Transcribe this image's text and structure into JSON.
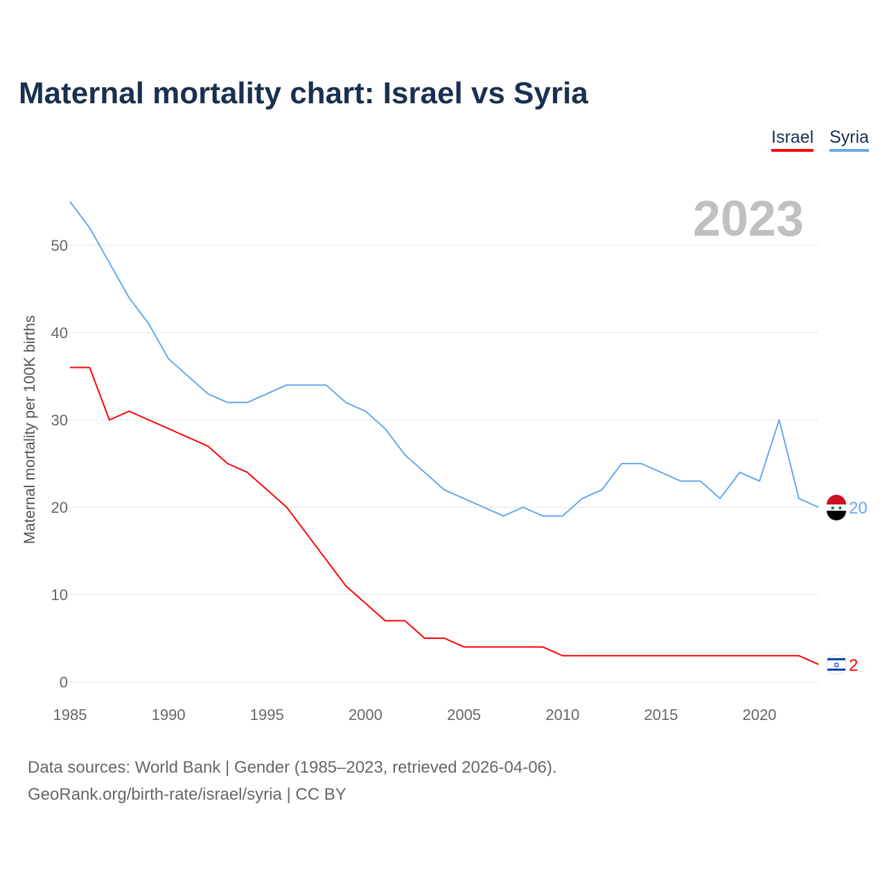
{
  "title": "Maternal mortality chart: Israel vs Syria",
  "year_label": "2023",
  "source_line1": "Data sources: World Bank | Gender (1985–2023, retrieved 2026-04-06).",
  "source_line2": "GeoRank.org/birth-rate/israel/syria | CC BY",
  "chart_data": {
    "type": "line",
    "title": "Maternal mortality chart: Israel vs Syria",
    "xlabel": "",
    "ylabel": "Maternal mortality per 100K births",
    "xlim": [
      1985,
      2023
    ],
    "ylim": [
      0,
      55
    ],
    "xticks": [
      1985,
      1990,
      1995,
      2000,
      2005,
      2010,
      2015,
      2020
    ],
    "yticks": [
      0,
      10,
      20,
      30,
      40,
      50
    ],
    "grid": true,
    "legend": "top-right",
    "x": [
      1985,
      1986,
      1987,
      1988,
      1989,
      1990,
      1991,
      1992,
      1993,
      1994,
      1995,
      1996,
      1997,
      1998,
      1999,
      2000,
      2001,
      2002,
      2003,
      2004,
      2005,
      2006,
      2007,
      2008,
      2009,
      2010,
      2011,
      2012,
      2013,
      2014,
      2015,
      2016,
      2017,
      2018,
      2019,
      2020,
      2021,
      2022,
      2023
    ],
    "series": [
      {
        "name": "Israel",
        "color": "#ff0000",
        "end_label": "2",
        "values": [
          36,
          36,
          30,
          31,
          30,
          29,
          28,
          27,
          25,
          24,
          22,
          20,
          17,
          14,
          11,
          9,
          7,
          7,
          5,
          5,
          4,
          4,
          4,
          4,
          4,
          3,
          3,
          3,
          3,
          3,
          3,
          3,
          3,
          3,
          3,
          3,
          3,
          3,
          2
        ]
      },
      {
        "name": "Syria",
        "color": "#64a8ec",
        "end_label": "20",
        "values": [
          55,
          52,
          48,
          44,
          41,
          37,
          35,
          33,
          32,
          32,
          33,
          34,
          34,
          34,
          32,
          31,
          29,
          26,
          24,
          22,
          21,
          20,
          19,
          20,
          19,
          19,
          21,
          22,
          25,
          25,
          24,
          23,
          23,
          21,
          24,
          23,
          30,
          21,
          20
        ]
      }
    ]
  }
}
